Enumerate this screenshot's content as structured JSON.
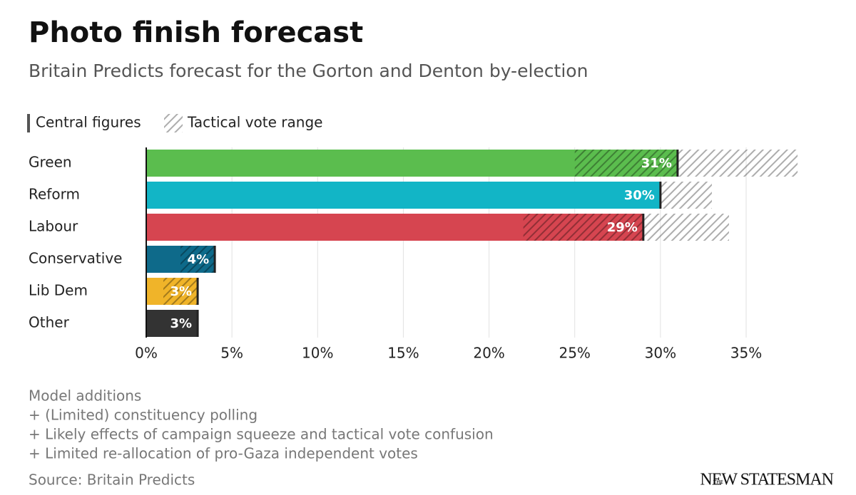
{
  "chart_data": {
    "type": "bar",
    "title": "Photo finish forecast",
    "subtitle": "Britain Predicts forecast for the Gorton and Denton by-election",
    "categories": [
      "Green",
      "Reform",
      "Labour",
      "Conservative",
      "Lib Dem",
      "Other"
    ],
    "series": [
      {
        "name": "Central figures",
        "values": [
          31,
          30,
          29,
          4,
          3,
          3
        ],
        "value_labels": [
          "31%",
          "30%",
          "29%",
          "4%",
          "3%",
          "3%"
        ],
        "colors": [
          "#5bbd4e",
          "#12b5c6",
          "#d64550",
          "#0e6a8a",
          "#f0b429",
          "#333333"
        ]
      },
      {
        "name": "Tactical vote range",
        "low": [
          25,
          30,
          22,
          2,
          1,
          null
        ],
        "high": [
          38,
          33,
          34,
          4,
          3,
          null
        ]
      }
    ],
    "xlim": [
      0,
      35
    ],
    "xticks": [
      {
        "value": 0,
        "label": "0%"
      },
      {
        "value": 5,
        "label": "5%"
      },
      {
        "value": 10,
        "label": "10%"
      },
      {
        "value": 15,
        "label": "15%"
      },
      {
        "value": 20,
        "label": "20%"
      },
      {
        "value": 25,
        "label": "25%"
      },
      {
        "value": 30,
        "label": "30%"
      },
      {
        "value": 35,
        "label": "35%"
      }
    ],
    "grid": true,
    "notes": [
      "Model additions",
      "+ (Limited) constituency polling",
      "+ Likely effects of campaign squeeze and tactical vote confusion",
      "+ Limited re-allocation of pro-Gaza independent votes"
    ],
    "source": "Source: Britain Predicts",
    "logo": {
      "prefix": "THE",
      "name": "NEW STATESMAN"
    }
  }
}
